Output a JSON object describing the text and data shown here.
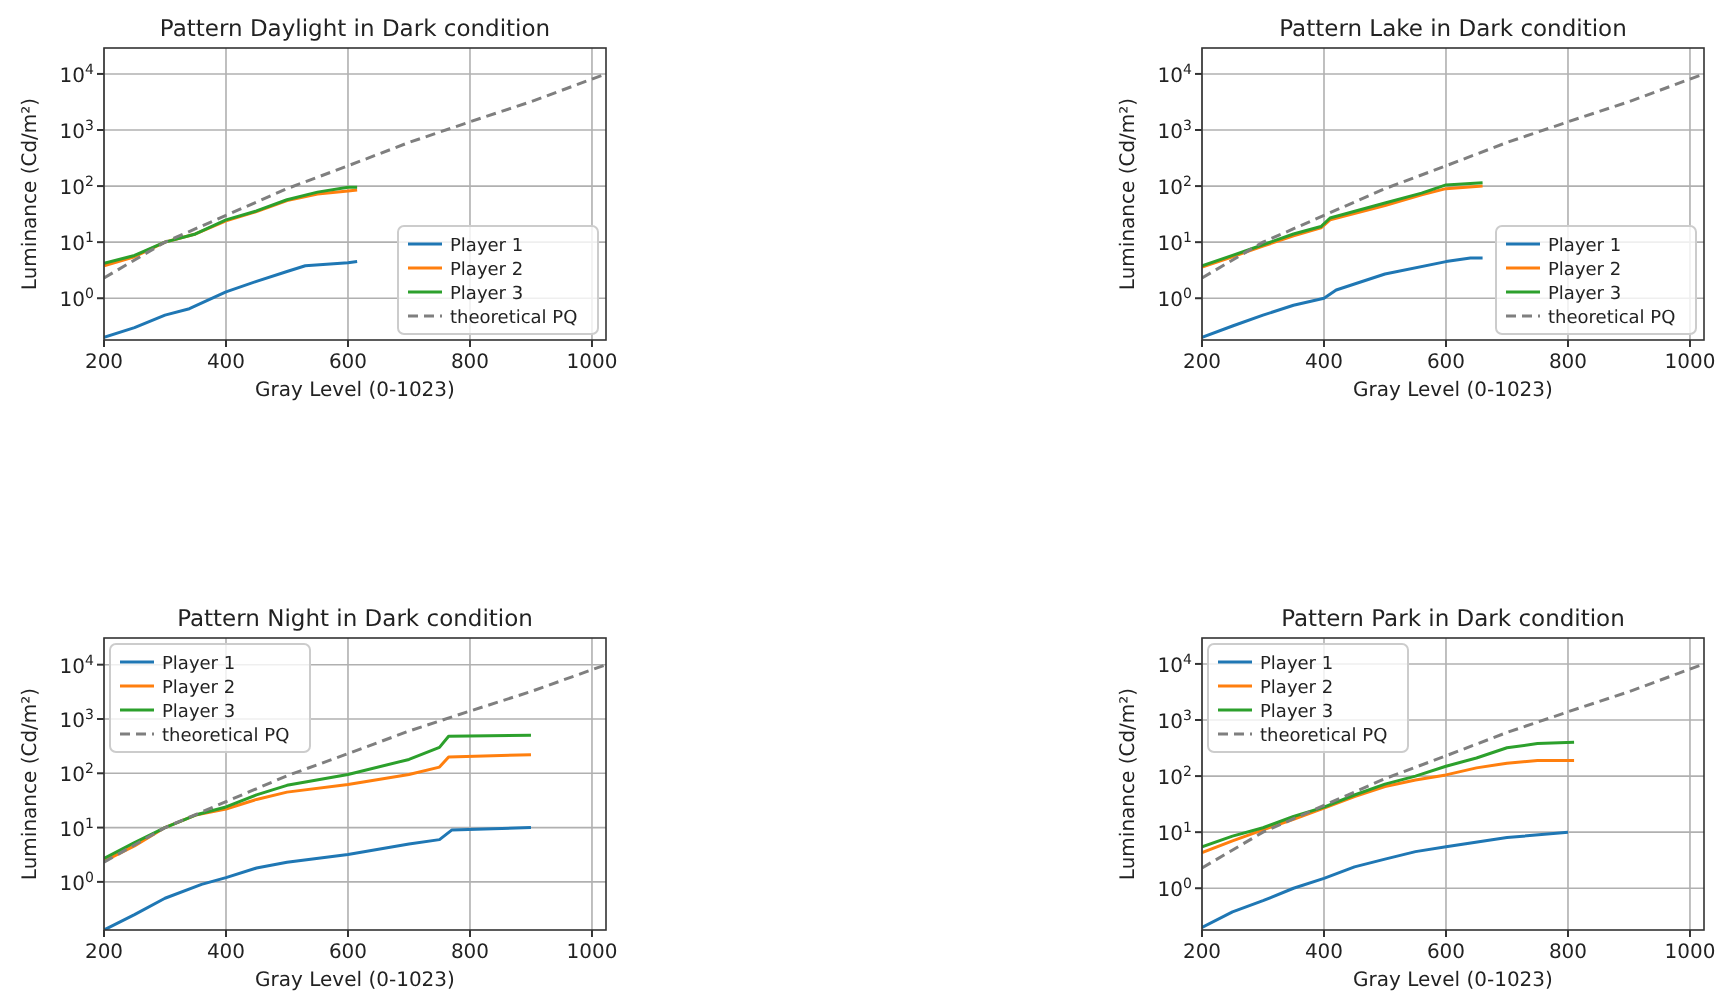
{
  "chart_data": [
    {
      "type": "line",
      "title": "Pattern Daylight in Dark condition",
      "xlabel": "Gray Level (0-1023)",
      "ylabel": "Luminance (Cd/m²)",
      "log": "y",
      "grid": true,
      "legend": "bottom right",
      "xlim": [
        200,
        1023
      ],
      "xticks": [
        200,
        400,
        600,
        800,
        1000
      ],
      "ylim": [
        0.18,
        29000
      ],
      "yticks": [
        {
          "value": 1,
          "label": "10$^{0}$"
        },
        {
          "value": 10,
          "label": "10$^{1}$"
        },
        {
          "value": 100,
          "label": "10$^{2}$"
        },
        {
          "value": 1000,
          "label": "10$^{3}$"
        },
        {
          "value": 10000,
          "label": "10$^{4}$"
        }
      ],
      "series": [
        {
          "name": "Player 1",
          "color": "#1f77b4",
          "x": [
            200,
            250,
            300,
            340,
            400,
            450,
            500,
            530,
            600,
            615
          ],
          "values": [
            0.2,
            0.3,
            0.5,
            0.65,
            1.3,
            2,
            3,
            3.8,
            4.3,
            4.5
          ]
        },
        {
          "name": "Player 2",
          "color": "#ff7f0e",
          "x": [
            200,
            250,
            300,
            350,
            400,
            450,
            500,
            550,
            600,
            615
          ],
          "values": [
            3.8,
            5.5,
            10,
            14,
            24,
            35,
            55,
            72,
            82,
            85
          ]
        },
        {
          "name": "Player 3",
          "color": "#2ca02c",
          "x": [
            200,
            250,
            300,
            350,
            400,
            450,
            500,
            550,
            600,
            615
          ],
          "values": [
            4.2,
            5.8,
            10,
            14,
            25,
            36,
            57,
            78,
            95,
            95
          ]
        },
        {
          "name": "theoretical PQ",
          "color": "#7f7f7f",
          "line_style": "dashed",
          "x": [
            200,
            300,
            400,
            500,
            600,
            700,
            800,
            900,
            1023
          ],
          "values": [
            2.3,
            10,
            30,
            90,
            230,
            600,
            1400,
            3200,
            10000
          ]
        }
      ]
    },
    {
      "type": "line",
      "title": "Pattern Lake in Dark condition",
      "xlabel": "Gray Level (0-1023)",
      "ylabel": "Luminance (Cd/m²)",
      "log": "y",
      "grid": true,
      "legend": "bottom right",
      "xlim": [
        200,
        1023
      ],
      "xticks": [
        200,
        400,
        600,
        800,
        1000
      ],
      "ylim": [
        0.18,
        29000
      ],
      "yticks": [
        {
          "value": 1,
          "label": "10$^{0}$"
        },
        {
          "value": 10,
          "label": "10$^{1}$"
        },
        {
          "value": 100,
          "label": "10$^{2}$"
        },
        {
          "value": 1000,
          "label": "10$^{3}$"
        },
        {
          "value": 10000,
          "label": "10$^{4}$"
        }
      ],
      "series": [
        {
          "name": "Player 1",
          "color": "#1f77b4",
          "x": [
            200,
            250,
            300,
            350,
            400,
            420,
            500,
            600,
            640,
            660
          ],
          "values": [
            0.2,
            0.32,
            0.5,
            0.75,
            1,
            1.4,
            2.7,
            4.5,
            5.2,
            5.2
          ]
        },
        {
          "name": "Player 2",
          "color": "#ff7f0e",
          "x": [
            200,
            250,
            300,
            350,
            395,
            410,
            500,
            560,
            600,
            660
          ],
          "values": [
            3.6,
            5.5,
            8.5,
            13,
            18,
            25,
            45,
            70,
            90,
            100
          ]
        },
        {
          "name": "Player 3",
          "color": "#2ca02c",
          "x": [
            200,
            250,
            300,
            350,
            395,
            410,
            500,
            560,
            600,
            660
          ],
          "values": [
            3.8,
            5.8,
            9,
            14,
            19,
            27,
            50,
            75,
            105,
            115
          ]
        },
        {
          "name": "theoretical PQ",
          "color": "#7f7f7f",
          "line_style": "dashed",
          "x": [
            200,
            300,
            400,
            500,
            600,
            700,
            800,
            900,
            1023
          ],
          "values": [
            2.3,
            10,
            30,
            90,
            230,
            600,
            1400,
            3200,
            10000
          ]
        }
      ]
    },
    {
      "type": "line",
      "title": "Pattern Night in Dark condition",
      "xlabel": "Gray Level (0-1023)",
      "ylabel": "Luminance (Cd/m²)",
      "log": "y",
      "grid": true,
      "legend": "top left",
      "xlim": [
        200,
        1023
      ],
      "xticks": [
        200,
        400,
        600,
        800,
        1000
      ],
      "ylim": [
        0.13,
        31000
      ],
      "yticks": [
        {
          "value": 1,
          "label": "10$^{0}$"
        },
        {
          "value": 10,
          "label": "10$^{1}$"
        },
        {
          "value": 100,
          "label": "10$^{2}$"
        },
        {
          "value": 1000,
          "label": "10$^{3}$"
        },
        {
          "value": 10000,
          "label": "10$^{4}$"
        }
      ],
      "series": [
        {
          "name": "Player 1",
          "color": "#1f77b4",
          "x": [
            200,
            250,
            300,
            360,
            400,
            450,
            500,
            600,
            700,
            750,
            770,
            900
          ],
          "values": [
            0.13,
            0.25,
            0.5,
            0.9,
            1.2,
            1.8,
            2.3,
            3.2,
            5,
            6,
            9,
            10
          ]
        },
        {
          "name": "Player 2",
          "color": "#ff7f0e",
          "x": [
            200,
            250,
            300,
            350,
            400,
            450,
            500,
            600,
            700,
            750,
            765,
            900
          ],
          "values": [
            2.4,
            4.6,
            10,
            17,
            22,
            33,
            45,
            62,
            95,
            130,
            200,
            220
          ]
        },
        {
          "name": "Player 3",
          "color": "#2ca02c",
          "x": [
            200,
            250,
            300,
            350,
            400,
            450,
            500,
            600,
            700,
            750,
            765,
            900
          ],
          "values": [
            2.7,
            5.3,
            10,
            17,
            24,
            40,
            60,
            95,
            180,
            300,
            480,
            500
          ]
        },
        {
          "name": "theoretical PQ",
          "color": "#7f7f7f",
          "line_style": "dashed",
          "x": [
            200,
            300,
            400,
            500,
            600,
            700,
            800,
            900,
            1023
          ],
          "values": [
            2.3,
            10,
            30,
            90,
            230,
            600,
            1400,
            3200,
            10000
          ]
        }
      ]
    },
    {
      "type": "line",
      "title": "Pattern Park in Dark condition",
      "xlabel": "Gray Level (0-1023)",
      "ylabel": "Luminance (Cd/m²)",
      "log": "y",
      "grid": true,
      "legend": "top left",
      "xlim": [
        200,
        1023
      ],
      "xticks": [
        200,
        400,
        600,
        800,
        1000
      ],
      "ylim": [
        0.18,
        29000
      ],
      "yticks": [
        {
          "value": 1,
          "label": "10$^{0}$"
        },
        {
          "value": 10,
          "label": "10$^{1}$"
        },
        {
          "value": 100,
          "label": "10$^{2}$"
        },
        {
          "value": 1000,
          "label": "10$^{3}$"
        },
        {
          "value": 10000,
          "label": "10$^{4}$"
        }
      ],
      "series": [
        {
          "name": "Player 1",
          "color": "#1f77b4",
          "x": [
            200,
            250,
            300,
            350,
            400,
            450,
            500,
            550,
            600,
            700,
            800
          ],
          "values": [
            0.2,
            0.38,
            0.6,
            1,
            1.5,
            2.4,
            3.3,
            4.5,
            5.5,
            8,
            10
          ]
        },
        {
          "name": "Player 2",
          "color": "#ff7f0e",
          "x": [
            200,
            250,
            300,
            350,
            400,
            450,
            500,
            550,
            600,
            650,
            700,
            750,
            810
          ],
          "values": [
            4.3,
            7,
            11,
            17,
            27,
            43,
            65,
            85,
            105,
            140,
            170,
            190,
            190
          ]
        },
        {
          "name": "Player 3",
          "color": "#2ca02c",
          "x": [
            200,
            250,
            300,
            350,
            400,
            450,
            500,
            550,
            600,
            650,
            700,
            750,
            810
          ],
          "values": [
            5.5,
            8.5,
            12,
            19,
            28,
            46,
            72,
            100,
            150,
            210,
            320,
            380,
            400
          ]
        },
        {
          "name": "theoretical PQ",
          "color": "#7f7f7f",
          "line_style": "dashed",
          "x": [
            200,
            300,
            400,
            500,
            600,
            700,
            800,
            900,
            1023
          ],
          "values": [
            2.3,
            10,
            30,
            90,
            230,
            600,
            1400,
            3200,
            10000
          ]
        }
      ]
    }
  ]
}
